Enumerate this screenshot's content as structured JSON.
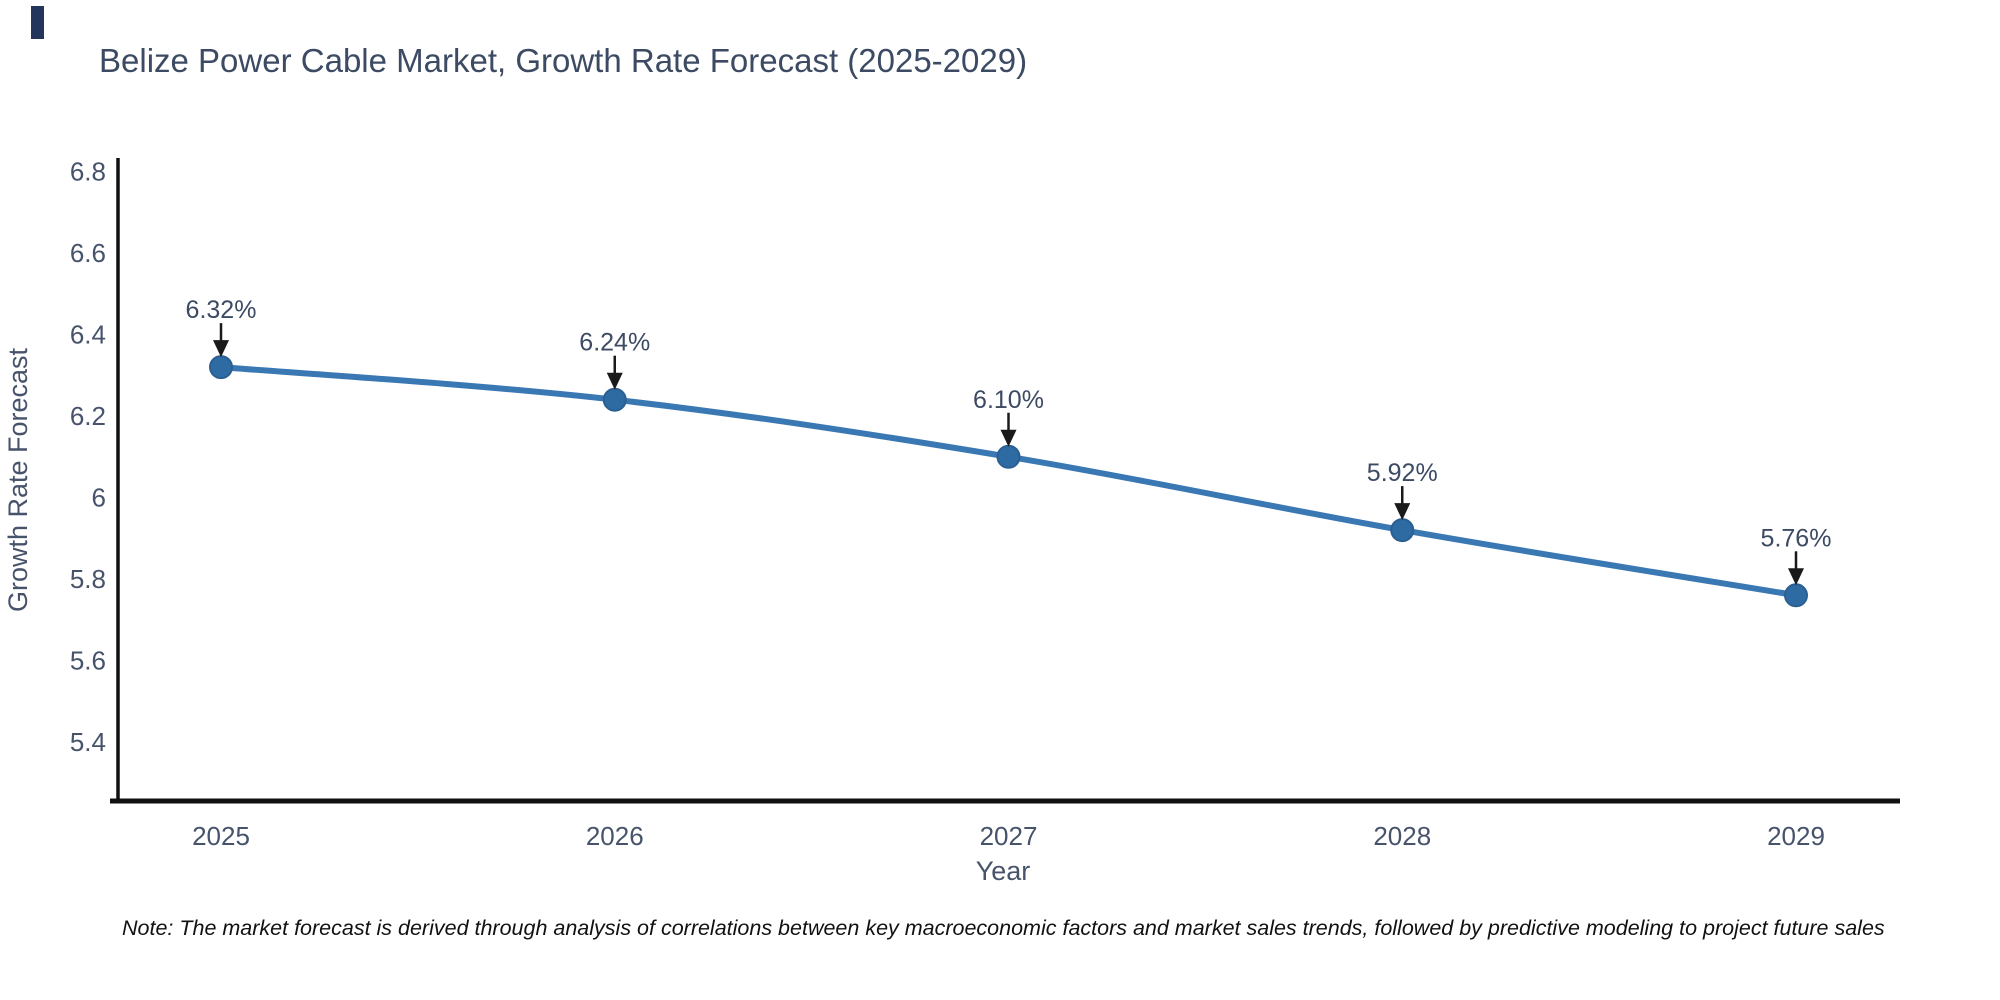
{
  "page": {
    "title": "Belize Power Cable Market, Growth Rate Forecast (2025-2029)",
    "note": "Note: The market forecast is derived through analysis of correlations between key macroeconomic factors and market sales trends, followed by predictive modeling to project future sales"
  },
  "chart_data": {
    "type": "line",
    "title": "Belize Power Cable Market, Growth Rate Forecast (2025-2029)",
    "categories": [
      "2025",
      "2026",
      "2027",
      "2028",
      "2029"
    ],
    "values": [
      6.32,
      6.24,
      6.1,
      5.92,
      5.76
    ],
    "point_labels": [
      "6.32%",
      "6.24%",
      "6.10%",
      "5.92%",
      "5.76%"
    ],
    "series_name": "Growth Rate Forecast",
    "xlabel": "Year",
    "ylabel": "Growth Rate Forecast",
    "ytick_values": [
      6.8,
      6.6,
      6.4,
      6.2,
      6.0,
      5.8,
      5.6,
      5.4
    ],
    "ytick_labels": [
      "6.8",
      "6.6",
      "6.4",
      "6.2",
      "6",
      "5.8",
      "5.6",
      "5.4"
    ],
    "ylim": [
      5.25,
      6.84
    ],
    "grid": false,
    "legend": "none",
    "line_shape": "spline",
    "annotations": "value labels with down arrows above each point",
    "colors": {
      "line": "#3a78b3",
      "marker": "#2f6ba3",
      "marker_edge": "#2a5f91",
      "axis": "#111111",
      "title": "#3c4a63",
      "tick": "#47536b",
      "annotation_text": "#3c4a63",
      "annotation_arrow": "#1a1a1a"
    }
  }
}
